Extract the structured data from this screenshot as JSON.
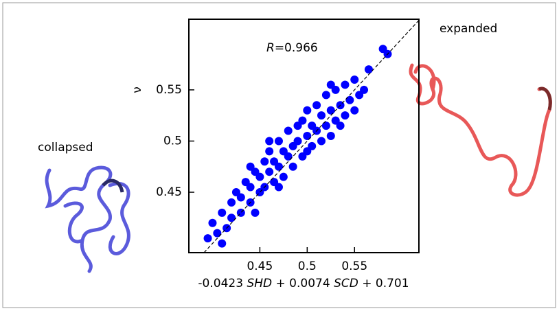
{
  "chart_data": {
    "type": "scatter",
    "annotation_parts": [
      "R",
      "=0.966"
    ],
    "ylabel": "ν",
    "xlabel_parts": [
      "-0.0423 ",
      "SHD",
      " +  0.0074 ",
      "SCD",
      " + 0.701"
    ],
    "left_label": "collapsed",
    "right_label": "expanded",
    "color": "#0000ff",
    "identity_line": true,
    "xlim": [
      0.375,
      0.618
    ],
    "ylim": [
      0.391,
      0.619
    ],
    "xticks": [
      0.45,
      0.5,
      0.55
    ],
    "yticks": [
      0.45,
      0.5,
      0.55
    ],
    "x": [
      0.395,
      0.4,
      0.405,
      0.41,
      0.415,
      0.42,
      0.42,
      0.425,
      0.43,
      0.43,
      0.435,
      0.44,
      0.44,
      0.445,
      0.45,
      0.45,
      0.455,
      0.455,
      0.46,
      0.46,
      0.465,
      0.465,
      0.47,
      0.47,
      0.475,
      0.475,
      0.48,
      0.48,
      0.485,
      0.485,
      0.49,
      0.49,
      0.495,
      0.495,
      0.5,
      0.5,
      0.505,
      0.505,
      0.51,
      0.51,
      0.515,
      0.515,
      0.52,
      0.52,
      0.525,
      0.525,
      0.53,
      0.53,
      0.535,
      0.535,
      0.54,
      0.54,
      0.545,
      0.55,
      0.55,
      0.555,
      0.56,
      0.565,
      0.58,
      0.585,
      0.41,
      0.445,
      0.47,
      0.5,
      0.525,
      0.44,
      0.46
    ],
    "y": [
      0.405,
      0.42,
      0.41,
      0.43,
      0.415,
      0.44,
      0.425,
      0.45,
      0.43,
      0.445,
      0.46,
      0.44,
      0.455,
      0.47,
      0.45,
      0.465,
      0.48,
      0.455,
      0.47,
      0.49,
      0.46,
      0.48,
      0.5,
      0.475,
      0.49,
      0.465,
      0.51,
      0.485,
      0.495,
      0.475,
      0.515,
      0.5,
      0.485,
      0.52,
      0.505,
      0.53,
      0.495,
      0.515,
      0.535,
      0.51,
      0.5,
      0.525,
      0.545,
      0.515,
      0.53,
      0.505,
      0.55,
      0.52,
      0.535,
      0.515,
      0.555,
      0.525,
      0.54,
      0.53,
      0.56,
      0.545,
      0.55,
      0.57,
      0.59,
      0.585,
      0.4,
      0.43,
      0.455,
      0.49,
      0.555,
      0.475,
      0.5
    ]
  }
}
